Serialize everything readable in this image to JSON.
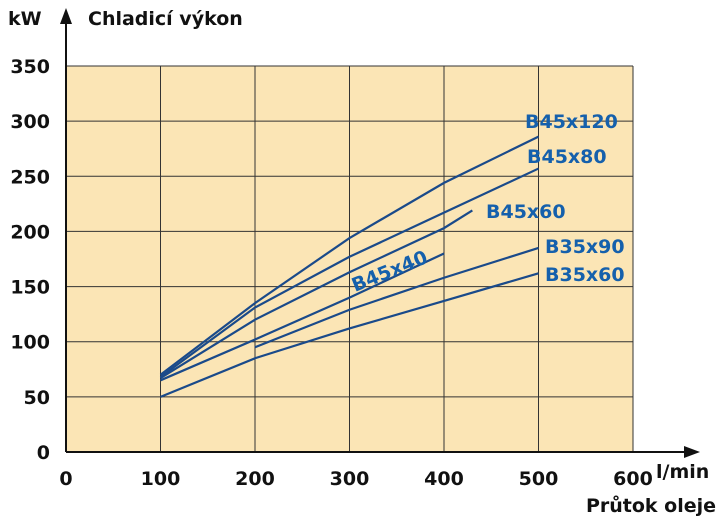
{
  "chart_data": {
    "type": "line",
    "title": "Chladicí výkon",
    "y_unit": "kW",
    "x_unit": "l/min",
    "x_label": "Průtok oleje",
    "xlim": [
      0,
      600
    ],
    "xticks": [
      0,
      100,
      200,
      300,
      400,
      500,
      600
    ],
    "ylim": [
      0,
      350
    ],
    "yticks": [
      0,
      50,
      100,
      150,
      200,
      250,
      300,
      350
    ],
    "grid": true,
    "background": "#fbe5b5",
    "series": [
      {
        "name": "B45x120",
        "color": "#1a4a8a",
        "x": [
          100,
          200,
          300,
          400,
          500
        ],
        "values": [
          70,
          135,
          194,
          244,
          286
        ]
      },
      {
        "name": "B45x80",
        "color": "#1a4a8a",
        "x": [
          100,
          200,
          300,
          400,
          500
        ],
        "values": [
          68,
          131,
          177,
          217,
          257
        ]
      },
      {
        "name": "B45x60",
        "color": "#1a4a8a",
        "x": [
          100,
          200,
          300,
          400,
          430
        ],
        "values": [
          67,
          120,
          163,
          203,
          219
        ]
      },
      {
        "name": "B45x40",
        "color": "#1a4a8a",
        "x": [
          100,
          200,
          300,
          400
        ],
        "values": [
          65,
          102,
          140,
          180
        ]
      },
      {
        "name": "B35x90",
        "color": "#1a4a8a",
        "x": [
          200,
          300,
          400,
          500
        ],
        "values": [
          95,
          129,
          158,
          185
        ]
      },
      {
        "name": "B35x60",
        "color": "#1a4a8a",
        "x": [
          100,
          200,
          300,
          400,
          500
        ],
        "values": [
          50,
          85,
          112,
          137,
          162
        ]
      }
    ]
  }
}
